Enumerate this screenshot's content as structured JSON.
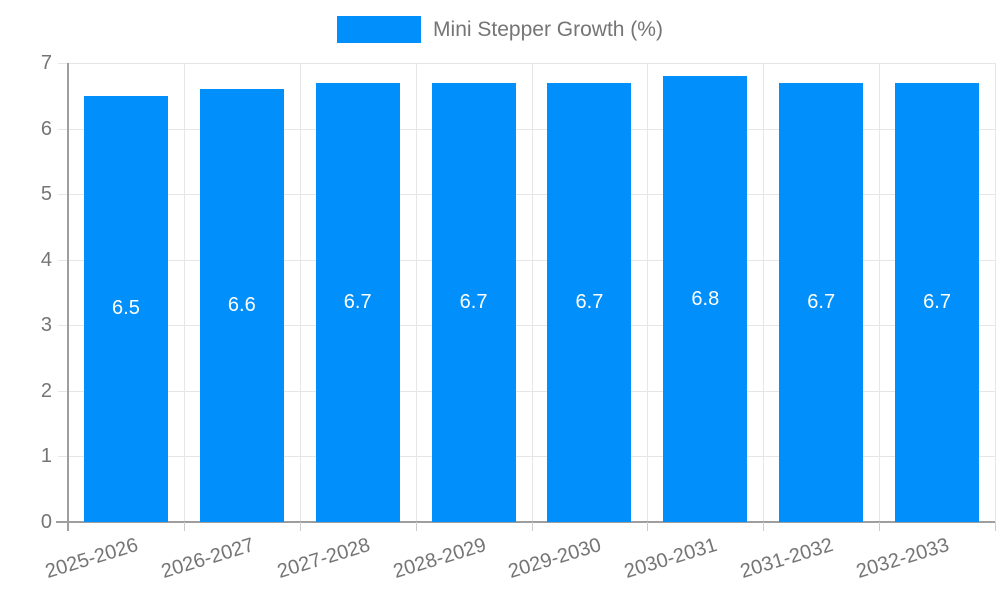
{
  "chart_data": {
    "type": "bar",
    "title": "",
    "legend": {
      "label": "Mini Stepper Growth (%)",
      "position": "top"
    },
    "categories": [
      "2025-2026",
      "2026-2027",
      "2027-2028",
      "2028-2029",
      "2029-2030",
      "2030-2031",
      "2031-2032",
      "2032-2033"
    ],
    "series": [
      {
        "name": "Mini Stepper Growth (%)",
        "values": [
          6.5,
          6.6,
          6.7,
          6.7,
          6.7,
          6.8,
          6.7,
          6.7
        ]
      }
    ],
    "value_labels": [
      "6.5",
      "6.6",
      "6.7",
      "6.7",
      "6.7",
      "6.8",
      "6.7",
      "6.7"
    ],
    "xlabel": "",
    "ylabel": "",
    "ylim": [
      0,
      7
    ],
    "yticks": [
      0,
      1,
      2,
      3,
      4,
      5,
      6,
      7
    ],
    "grid": true,
    "legend_position": "top-center",
    "colors": {
      "bar": "#008FFB",
      "bar_value_label": "#ffffff",
      "axis_text": "#757575",
      "grid_line": "#e6e6e6",
      "axis_line": "#9e9e9e",
      "tick_below_axis": "#cccccc"
    }
  }
}
